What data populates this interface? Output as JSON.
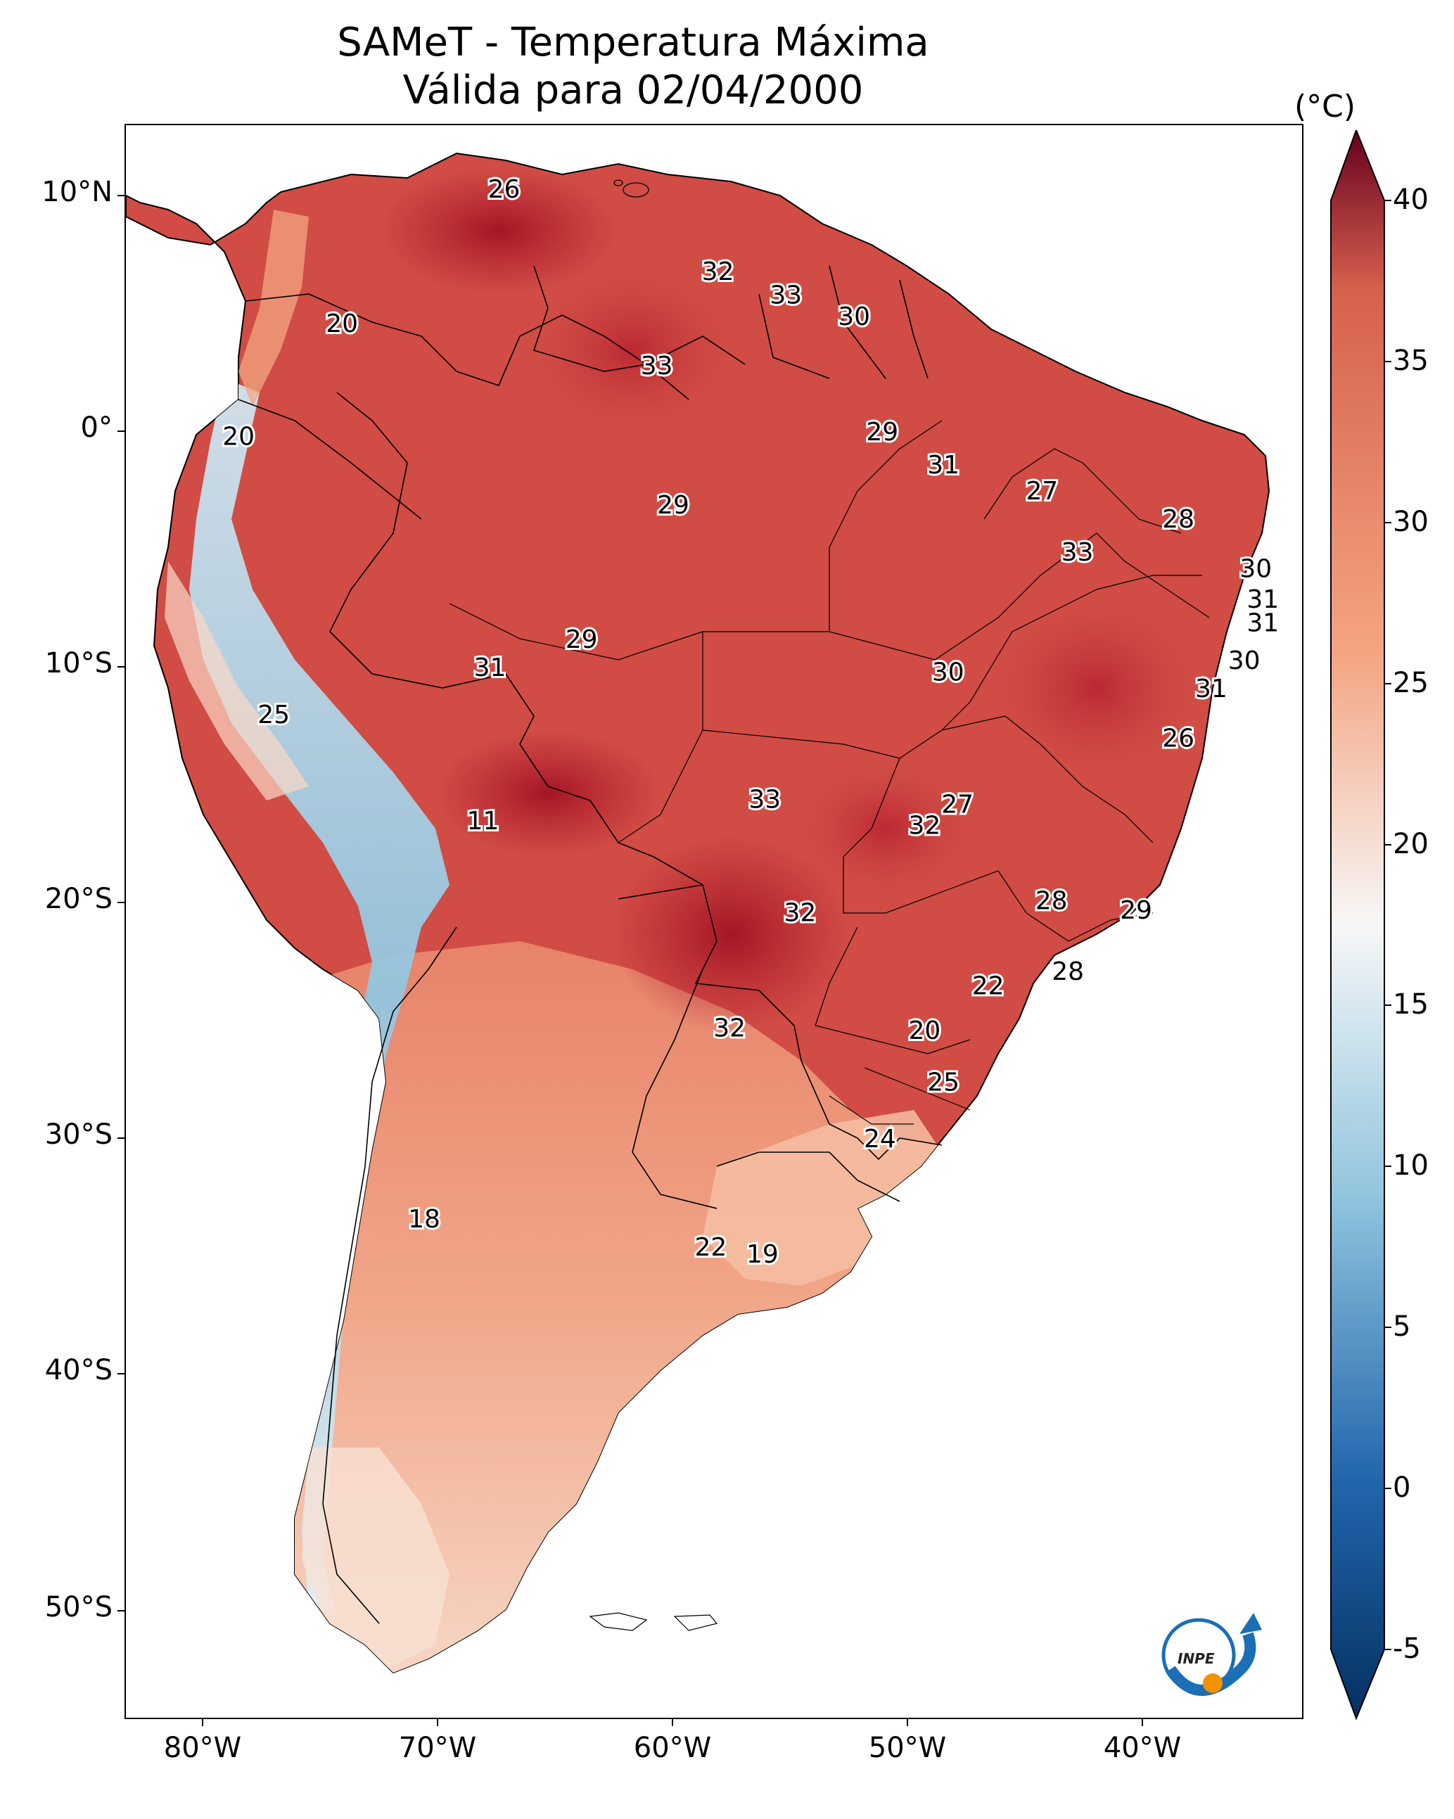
{
  "title": {
    "line1": "SAMeT - Temperatura Máxima",
    "line2": "Válida para 02/04/2000"
  },
  "axes": {
    "lat_ticks": [
      "10°N",
      "0°",
      "10°S",
      "20°S",
      "30°S",
      "40°S",
      "50°S"
    ],
    "lon_ticks": [
      "80°W",
      "70°W",
      "60°W",
      "50°W",
      "40°W"
    ]
  },
  "colorbar": {
    "unit": "(°C)",
    "ticks": [
      "40",
      "35",
      "30",
      "25",
      "20",
      "15",
      "10",
      "5",
      "0",
      "-5"
    ],
    "vmin": -5,
    "vmax": 40,
    "colors": {
      "min": "#053061",
      "low": "#2166ac",
      "mid_low": "#92c5de",
      "mid": "#f7f7f7",
      "mid_high": "#f4a582",
      "high": "#d6604d",
      "max": "#67001f"
    }
  },
  "cities": [
    {
      "label": "26",
      "lon": -67.2,
      "lat": 10.3
    },
    {
      "label": "20",
      "lon": -74.1,
      "lat": 4.6
    },
    {
      "label": "32",
      "lon": -58.1,
      "lat": 6.8
    },
    {
      "label": "33",
      "lon": -55.2,
      "lat": 5.8
    },
    {
      "label": "30",
      "lon": -52.3,
      "lat": 4.9
    },
    {
      "label": "33",
      "lon": -60.7,
      "lat": 2.8
    },
    {
      "label": "20",
      "lon": -78.5,
      "lat": -0.2
    },
    {
      "label": "29",
      "lon": -51.1,
      "lat": 0.0
    },
    {
      "label": "31",
      "lon": -48.5,
      "lat": -1.4
    },
    {
      "label": "27",
      "lon": -44.3,
      "lat": -2.5
    },
    {
      "label": "29",
      "lon": -60.0,
      "lat": -3.1
    },
    {
      "label": "28",
      "lon": -38.5,
      "lat": -3.7
    },
    {
      "label": "33",
      "lon": -42.8,
      "lat": -5.1
    },
    {
      "label": "30",
      "lon": -35.2,
      "lat": -5.8
    },
    {
      "label": "31",
      "lon": -34.9,
      "lat": -7.1
    },
    {
      "label": "31",
      "lon": -34.9,
      "lat": -8.1
    },
    {
      "label": "29",
      "lon": -63.9,
      "lat": -8.8
    },
    {
      "label": "31",
      "lon": -67.8,
      "lat": -10.0
    },
    {
      "label": "30",
      "lon": -48.3,
      "lat": -10.2
    },
    {
      "label": "30",
      "lon": -35.7,
      "lat": -9.7
    },
    {
      "label": "31",
      "lon": -37.1,
      "lat": -10.9
    },
    {
      "label": "25",
      "lon": -77.0,
      "lat": -12.0
    },
    {
      "label": "26",
      "lon": -38.5,
      "lat": -13.0
    },
    {
      "label": "33",
      "lon": -56.1,
      "lat": -15.6
    },
    {
      "label": "27",
      "lon": -47.9,
      "lat": -15.8
    },
    {
      "label": "32",
      "lon": -49.3,
      "lat": -16.7
    },
    {
      "label": "11",
      "lon": -68.1,
      "lat": -16.5
    },
    {
      "label": "28",
      "lon": -43.9,
      "lat": -19.9
    },
    {
      "label": "29",
      "lon": -40.3,
      "lat": -20.3
    },
    {
      "label": "32",
      "lon": -54.6,
      "lat": -20.4
    },
    {
      "label": "28",
      "lon": -43.2,
      "lat": -22.9
    },
    {
      "label": "22",
      "lon": -46.6,
      "lat": -23.5
    },
    {
      "label": "32",
      "lon": -57.6,
      "lat": -25.3
    },
    {
      "label": "20",
      "lon": -49.3,
      "lat": -25.4
    },
    {
      "label": "25",
      "lon": -48.5,
      "lat": -27.6
    },
    {
      "label": "24",
      "lon": -51.2,
      "lat": -30.0
    },
    {
      "label": "18",
      "lon": -70.6,
      "lat": -33.4
    },
    {
      "label": "22",
      "lon": -58.4,
      "lat": -34.6
    },
    {
      "label": "19",
      "lon": -56.2,
      "lat": -34.9
    }
  ],
  "logo": {
    "text": "INPE"
  }
}
